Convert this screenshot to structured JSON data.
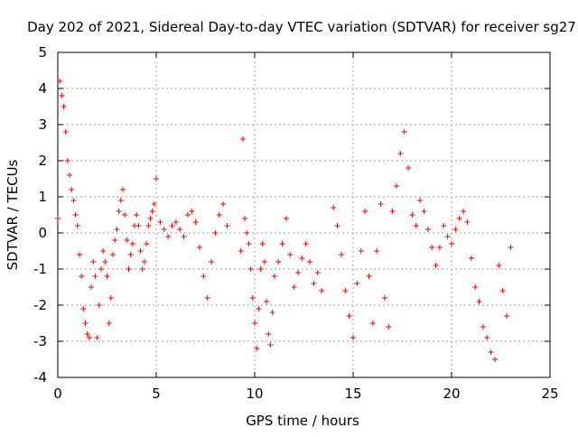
{
  "chart_data": {
    "type": "scatter",
    "title": "Day 202 of 2021, Sidereal Day-to-day VTEC variation (SDTVAR) for receiver sg27",
    "xlabel": "GPS time / hours",
    "ylabel": "SDTVAR / TECUs",
    "xlim": [
      0,
      25
    ],
    "ylim": [
      -4,
      5
    ],
    "xticks": [
      0,
      5,
      10,
      15,
      20,
      25
    ],
    "yticks": [
      -4,
      -3,
      -2,
      -1,
      0,
      1,
      2,
      3,
      4,
      5
    ],
    "xtick_labels": [
      "0",
      "5",
      "10",
      "15",
      "20",
      "25"
    ],
    "ytick_labels": [
      "-4",
      "-3",
      "-2",
      "-1",
      "0",
      "1",
      "2",
      "3",
      "4",
      "5"
    ],
    "grid": true,
    "marker": "+",
    "series": [
      {
        "name": "SDTVAR sg27",
        "color": "#ff0000",
        "x": [
          0.0,
          0.1,
          0.2,
          0.3,
          0.4,
          0.5,
          0.6,
          0.7,
          0.8,
          0.9,
          1.0,
          1.1,
          1.2,
          1.3,
          1.4,
          1.5,
          1.6,
          1.7,
          1.8,
          1.9,
          2.0,
          2.1,
          2.2,
          2.3,
          2.4,
          2.5,
          2.6,
          2.7,
          2.8,
          2.9,
          3.0,
          3.1,
          3.2,
          3.3,
          3.4,
          3.5,
          3.6,
          3.7,
          3.8,
          3.9,
          4.0,
          4.1,
          4.2,
          4.3,
          4.4,
          4.5,
          4.6,
          4.7,
          4.8,
          4.9,
          5.0,
          5.2,
          5.4,
          5.6,
          5.8,
          6.0,
          6.2,
          6.4,
          6.6,
          6.8,
          7.0,
          7.2,
          7.4,
          7.6,
          7.8,
          8.0,
          8.2,
          8.4,
          8.6,
          9.3,
          9.4,
          9.5,
          9.6,
          9.7,
          9.8,
          9.9,
          10.0,
          10.1,
          10.2,
          10.3,
          10.4,
          10.5,
          10.6,
          10.7,
          10.8,
          10.9,
          11.0,
          11.2,
          11.4,
          11.6,
          11.8,
          12.0,
          12.2,
          12.4,
          12.6,
          12.8,
          13.0,
          13.2,
          13.4,
          14.0,
          14.2,
          14.4,
          14.6,
          14.8,
          15.0,
          15.2,
          15.4,
          15.6,
          15.8,
          16.0,
          16.2,
          16.4,
          16.6,
          16.8,
          17.0,
          17.2,
          17.4,
          17.6,
          17.8,
          18.0,
          18.2,
          18.4,
          18.6,
          18.8,
          19.0,
          19.2,
          19.4,
          19.6,
          19.8,
          20.0,
          20.2,
          20.4,
          20.6,
          20.8,
          21.0,
          21.2,
          21.4,
          21.6,
          21.8,
          22.0,
          22.2,
          22.4,
          22.6,
          22.8,
          23.0
        ],
        "y": [
          0.4,
          4.2,
          3.8,
          3.5,
          2.8,
          2.0,
          1.6,
          1.2,
          0.9,
          0.5,
          0.2,
          -0.6,
          -1.2,
          -2.1,
          -2.5,
          -2.8,
          -2.9,
          -1.5,
          -0.8,
          -1.2,
          -2.9,
          -2.0,
          -1.0,
          -0.5,
          -0.8,
          -1.2,
          -2.5,
          -1.8,
          -0.6,
          -0.2,
          0.1,
          0.6,
          0.9,
          1.2,
          0.5,
          -0.2,
          -1.0,
          -0.6,
          -0.3,
          0.2,
          0.5,
          0.2,
          -0.5,
          -1.0,
          -0.8,
          -0.3,
          0.2,
          0.4,
          0.6,
          0.8,
          1.5,
          0.3,
          0.1,
          -0.1,
          0.2,
          0.3,
          0.1,
          -0.1,
          0.5,
          0.6,
          0.3,
          -0.4,
          -1.2,
          -1.8,
          -0.8,
          0.0,
          0.5,
          0.8,
          0.2,
          -0.5,
          2.6,
          0.4,
          0.0,
          -0.3,
          -1.0,
          -1.8,
          -2.5,
          -3.2,
          -2.1,
          -1.0,
          -0.3,
          -0.8,
          -1.9,
          -2.8,
          -3.1,
          -2.2,
          -1.2,
          -0.8,
          -0.3,
          0.4,
          -0.6,
          -1.5,
          -1.1,
          -0.7,
          -0.3,
          -0.8,
          -1.4,
          -1.1,
          -1.6,
          0.7,
          0.2,
          -0.6,
          -1.6,
          -2.3,
          -2.9,
          -1.4,
          -0.5,
          0.6,
          -1.2,
          -2.5,
          -0.5,
          0.8,
          -1.8,
          -2.6,
          0.6,
          1.3,
          2.2,
          2.8,
          1.8,
          0.5,
          0.2,
          0.9,
          0.6,
          0.1,
          -0.4,
          -0.9,
          -0.4,
          0.2,
          -0.1,
          -0.3,
          0.1,
          0.4,
          0.6,
          0.3,
          -0.7,
          -1.5,
          -1.9,
          -2.6,
          -2.9,
          -3.3,
          -3.5,
          -0.9,
          -1.6,
          -2.3,
          -0.4
        ]
      }
    ]
  }
}
